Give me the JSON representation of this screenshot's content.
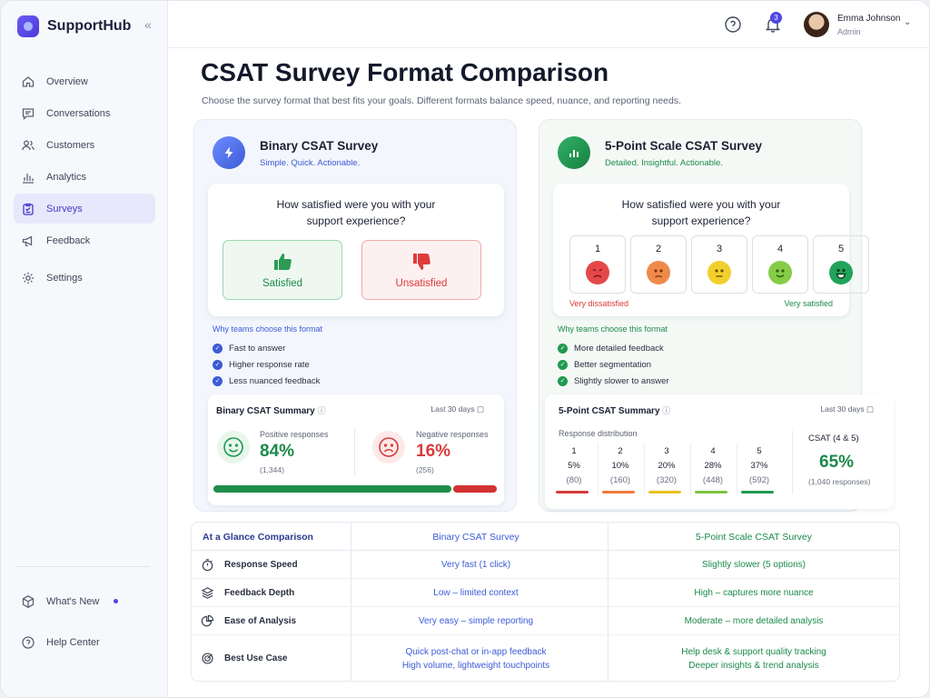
{
  "brand": {
    "name": "SupportHub"
  },
  "nav": [
    {
      "label": "Overview",
      "icon": "home-icon"
    },
    {
      "label": "Conversations",
      "icon": "chat-icon"
    },
    {
      "label": "Customers",
      "icon": "users-icon"
    },
    {
      "label": "Analytics",
      "icon": "bar-chart-icon"
    },
    {
      "label": "Surveys",
      "icon": "clipboard-icon",
      "active": true
    },
    {
      "label": "Feedback",
      "icon": "megaphone-icon"
    },
    {
      "label": "Settings",
      "icon": "gear-icon"
    }
  ],
  "nav_bottom": [
    {
      "label": "What's New",
      "icon": "box-icon"
    },
    {
      "label": "Help Center",
      "icon": "help-icon"
    }
  ],
  "topbar": {
    "notifications": "3",
    "user_name": "Emma Johnson",
    "user_role": "Admin"
  },
  "page": {
    "title": "CSAT Survey Format Comparison",
    "subtitle": "Choose the survey format that best fits your goals. Different formats balance speed, nuance, and reporting needs."
  },
  "binary": {
    "title": "Binary CSAT Survey",
    "tagline": "Simple. Quick. Actionable.",
    "question_line1": "How satisfied were you with your",
    "question_line2": "support experience?",
    "satisfied": "Satisfied",
    "unsatisfied": "Unsatisfied",
    "why": "Why teams choose this format",
    "reasons": [
      "Fast to answer",
      "Higher response rate",
      "Less nuanced feedback"
    ],
    "summary": {
      "title": "Binary CSAT Summary",
      "period": "Last 30 days",
      "positive_label": "Positive responses",
      "positive_pct": "84%",
      "positive_count": "(1,344)",
      "negative_label": "Negative responses",
      "negative_pct": "16%",
      "negative_count": "(256)",
      "positive_share": 0.84
    }
  },
  "scale": {
    "title": "5-Point Scale CSAT Survey",
    "tagline": "Detailed. Insightful. Actionable.",
    "question_line1": "How satisfied were you with your",
    "question_line2": "support experience?",
    "options": [
      "1",
      "2",
      "3",
      "4",
      "5"
    ],
    "low_label": "Very dissatisfied",
    "high_label": "Very satisfied",
    "why": "Why teams choose this format",
    "reasons": [
      "More detailed feedback",
      "Better segmentation",
      "Slightly slower to answer"
    ],
    "summary": {
      "title": "5-Point CSAT Summary",
      "period": "Last 30 days",
      "dist_label": "Response distribution",
      "dist": [
        {
          "score": "1",
          "pct": "5%",
          "count": "(80)",
          "color": "#d93a3a"
        },
        {
          "score": "2",
          "pct": "10%",
          "count": "(160)",
          "color": "#ef7a3b"
        },
        {
          "score": "3",
          "pct": "20%",
          "count": "(320)",
          "color": "#e8c21f"
        },
        {
          "score": "4",
          "pct": "28%",
          "count": "(448)",
          "color": "#7cc43e"
        },
        {
          "score": "5",
          "pct": "37%",
          "count": "(592)",
          "color": "#1f9a50"
        }
      ],
      "csat_label": "CSAT (4 & 5)",
      "csat_value": "65%",
      "csat_count": "(1,040 responses)"
    }
  },
  "compare": {
    "head": "At a Glance Comparison",
    "col1": "Binary CSAT Survey",
    "col2": "5-Point Scale CSAT Survey",
    "rows": [
      {
        "label": "Response Speed",
        "icon": "stopwatch-icon",
        "v1": "Very fast (1 click)",
        "v2": "Slightly slower (5 options)"
      },
      {
        "label": "Feedback Depth",
        "icon": "layers-icon",
        "v1": "Low – limited context",
        "v2": "High – captures more nuance"
      },
      {
        "label": "Ease of Analysis",
        "icon": "pie-chart-icon",
        "v1": "Very easy – simple reporting",
        "v2": "Moderate – more detailed analysis"
      },
      {
        "label": "Best Use Case",
        "icon": "target-icon",
        "v1a": "Quick post-chat or in-app feedback",
        "v1b": "High volume, lightweight touchpoints",
        "v2a": "Help desk & support quality tracking",
        "v2b": "Deeper insights & trend analysis"
      }
    ]
  },
  "colors": {
    "accent": "#4f46e5",
    "blue": "#3b5bd6",
    "green": "#1b8a4a",
    "red": "#d93a3a"
  }
}
